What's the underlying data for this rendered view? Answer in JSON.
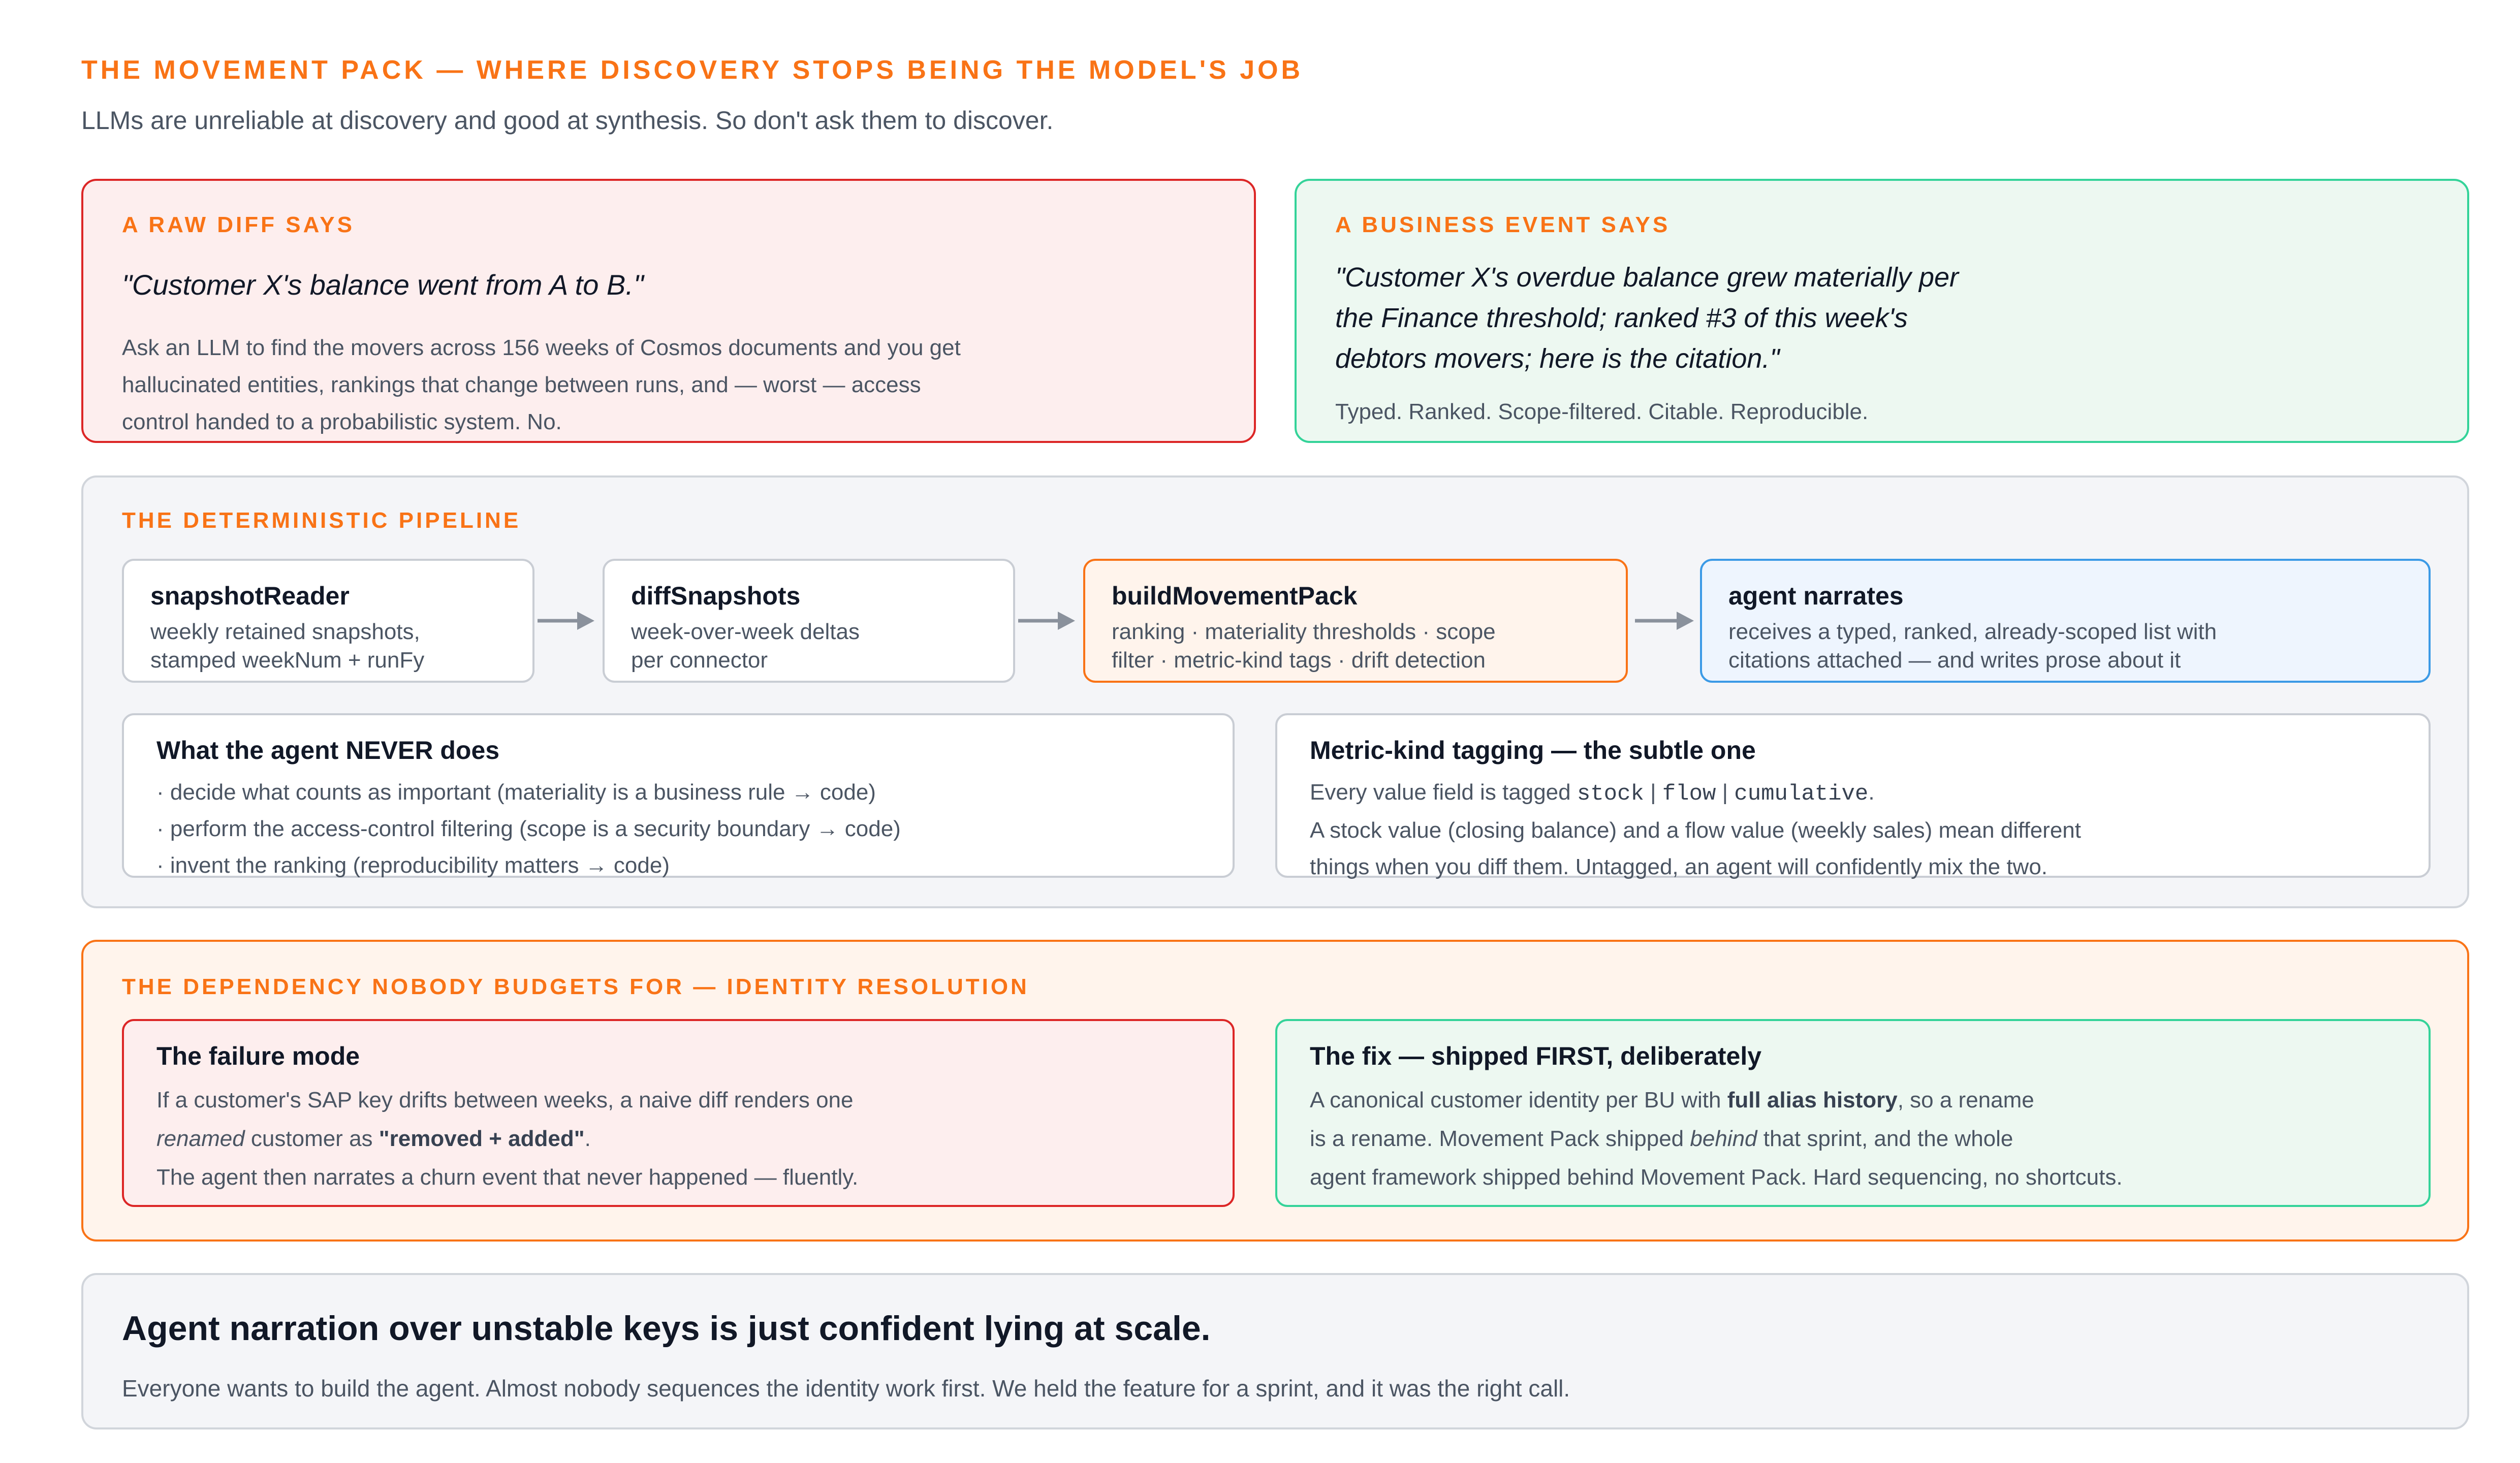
{
  "header": {
    "title": "THE MOVEMENT PACK — WHERE DISCOVERY STOPS BEING THE MODEL'S JOB",
    "subtitle": "LLMs are unreliable at discovery and good at synthesis. So don't ask them to discover."
  },
  "raw_diff": {
    "kicker": "A RAW DIFF SAYS",
    "quote": "\"Customer X's balance went from A to B.\"",
    "body_lines": [
      "Ask an LLM to find the movers across 156 weeks of Cosmos documents and you get",
      "hallucinated entities, rankings that change between runs, and — worst — access",
      "control handed to a probabilistic system. No."
    ]
  },
  "business_event": {
    "kicker": "A BUSINESS EVENT SAYS",
    "quote_lines": [
      "\"Customer X's overdue balance grew materially per",
      "the Finance threshold; ranked #3 of this week's",
      "debtors movers; here is the citation.\""
    ],
    "body": "Typed. Ranked. Scope-filtered. Citable. Reproducible."
  },
  "pipeline": {
    "kicker": "THE DETERMINISTIC PIPELINE",
    "steps": [
      {
        "title": "snapshotReader",
        "lines": [
          "weekly retained snapshots,",
          "stamped weekNum + runFy"
        ]
      },
      {
        "title": "diffSnapshots",
        "lines": [
          "week-over-week deltas",
          "per connector"
        ]
      },
      {
        "title": "buildMovementPack",
        "lines": [
          "ranking · materiality thresholds · scope",
          "filter · metric-kind tags · drift detection"
        ]
      },
      {
        "title": "agent narrates",
        "lines": [
          "receives a typed, ranked, already-scoped list with",
          "citations attached — and writes prose about it"
        ]
      }
    ],
    "never": {
      "title": "What the agent NEVER does",
      "lines": [
        "· decide what counts as important (materiality is a business rule → code)",
        "· perform the access-control filtering (scope is a security boundary → code)",
        "· invent the ranking (reproducibility matters → code)"
      ]
    },
    "metric": {
      "title": "Metric-kind tagging — the subtle one",
      "line1_prefix": "Every value field is tagged ",
      "tag_stock": "stock",
      "sep": " | ",
      "tag_flow": "flow",
      "tag_cumulative": "cumulative",
      "line1_suffix": ".",
      "lines": [
        "A stock value (closing balance) and a flow value (weekly sales) mean different",
        "things when you diff them. Untagged, an agent will confidently mix the two."
      ]
    }
  },
  "identity": {
    "kicker": "THE DEPENDENCY NOBODY BUDGETS FOR — IDENTITY RESOLUTION",
    "failure": {
      "title": "The failure mode",
      "line1": "If a customer's SAP key drifts between weeks, a naive diff renders one",
      "line2_em": "renamed",
      "line2_mid": " customer as ",
      "line2_strong": "\"removed + added\"",
      "line2_end": ".",
      "line3": "The agent then narrates a churn event that never happened — fluently."
    },
    "fix": {
      "title": "The fix — shipped FIRST, deliberately",
      "line1_pre": "A canonical customer identity per BU with ",
      "line1_strong": "full alias history",
      "line1_post": ", so a rename",
      "line2_pre": "is a rename. Movement Pack shipped ",
      "line2_em": "behind",
      "line2_post": " that sprint, and the whole",
      "line3": "agent framework shipped behind Movement Pack. Hard sequencing, no shortcuts."
    }
  },
  "closing": {
    "headline": "Agent narration over unstable keys is just confident lying at scale.",
    "body": "Everyone wants to build the agent. Almost nobody sequences the identity work first. We held the feature for a sprint, and it was the right call."
  },
  "colors": {
    "accent": "#f97316",
    "red_border": "#dc2626",
    "red_fill": "#fdeeee",
    "green_border": "#34d399",
    "green_fill": "#edf8f1",
    "gray_fill": "#f4f5f8",
    "gray_border": "#d1d5db",
    "orange_fill": "#fff4ec",
    "blue_fill": "#eef5fe",
    "blue_border": "#3b9ae6"
  }
}
